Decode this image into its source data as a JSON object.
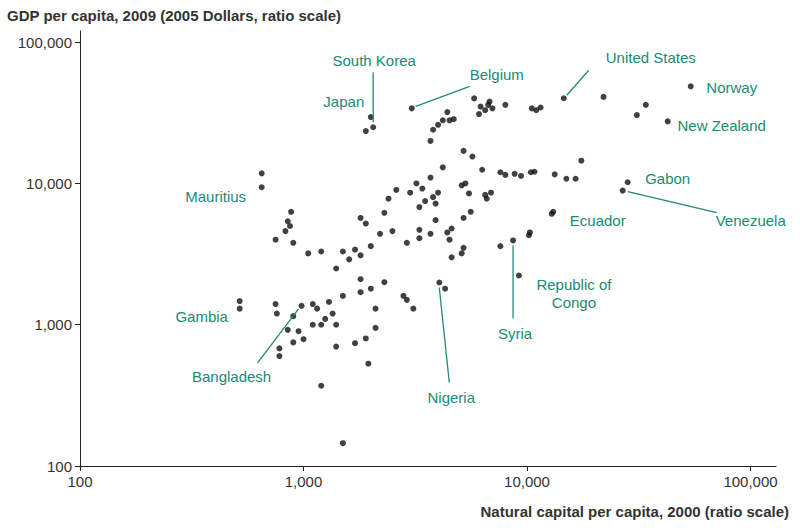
{
  "chart_data": {
    "type": "scatter",
    "ylabel": "GDP per capita, 2009 (2005 Dollars, ratio scale)",
    "xlabel": "Natural capital per capita, 2000 (ratio scale)",
    "color": "#111111",
    "log": true,
    "grid": false,
    "xlim": [
      100,
      130000
    ],
    "ylim": [
      100,
      120000
    ],
    "xticks": [
      100,
      {
        "value": 1000,
        "label": "1,000"
      },
      {
        "value": 10000,
        "label": "10,000"
      },
      {
        "value": 100000,
        "label": "100,000"
      }
    ],
    "yticks": [
      100,
      {
        "value": 1000,
        "label": "1,000"
      },
      {
        "value": 10000,
        "label": "10,000"
      },
      {
        "value": 100000,
        "label": "100,000"
      }
    ],
    "x": [
      2000,
      1900,
      2050,
      3050,
      4000,
      4200,
      4400,
      4500,
      4700,
      3800,
      3700,
      5800,
      6100,
      6500,
      6700,
      7000,
      6800,
      8000,
      6200,
      10500,
      11000,
      11500,
      14600,
      22000,
      31000,
      34000,
      42600,
      54000,
      5200,
      5700,
      4200,
      6300,
      7600,
      3700,
      3200,
      3400,
      3000,
      2600,
      2400,
      3800,
      4000,
      3500,
      3300,
      3900,
      5100,
      5300,
      5500,
      6500,
      6900,
      6600,
      8000,
      8800,
      9400,
      10400,
      10800,
      13300,
      15000,
      16500,
      17500,
      28200,
      26800,
      12900,
      13100,
      2300,
      1800,
      3300,
      5200,
      5600,
      3900,
      8660,
      10200,
      10300,
      7600,
      4400,
      4600,
      4500,
      4600,
      5100,
      5200,
      3700,
      3300,
      2900,
      2500,
      2200,
      1900,
      2000,
      1800,
      1600,
      1700,
      1500,
      1400,
      1200,
      900,
      750,
      830,
      850,
      880,
      870,
      1050,
      650,
      650,
      9200,
      4050,
      980,
      518,
      518,
      750,
      760,
      900,
      1100,
      1150,
      1300,
      1350,
      1250,
      1400,
      1500,
      1800,
      2000,
      2300,
      2800,
      2900,
      3100,
      4300,
      2100,
      1800,
      780,
      780,
      900,
      950,
      1000,
      1100,
      1200,
      1400,
      1700,
      1900,
      1950,
      2100,
      1200,
      1500,
      850
    ],
    "y": [
      29500,
      23500,
      25000,
      34000,
      26000,
      28000,
      32000,
      28000,
      28500,
      24000,
      20000,
      40000,
      31000,
      33000,
      36000,
      34000,
      38000,
      36000,
      35000,
      34000,
      33000,
      34500,
      40100,
      41000,
      30500,
      36000,
      27500,
      48700,
      17000,
      15500,
      13000,
      12500,
      12000,
      11000,
      10000,
      9200,
      8600,
      9000,
      7800,
      8000,
      8600,
      7500,
      6800,
      7200,
      9700,
      10000,
      8500,
      8300,
      8600,
      7800,
      11500,
      11700,
      11300,
      12000,
      12100,
      11600,
      10800,
      10800,
      14500,
      10200,
      8900,
      6100,
      6300,
      6200,
      5700,
      4700,
      5700,
      6300,
      5500,
      3950,
      4300,
      4500,
      3600,
      4500,
      4800,
      4000,
      3000,
      3200,
      3500,
      4400,
      4100,
      3800,
      4600,
      4400,
      5200,
      3600,
      3100,
      2900,
      3400,
      3300,
      2500,
      3300,
      3800,
      4000,
      4600,
      5400,
      6300,
      5000,
      3200,
      11800,
      9400,
      2230,
      1990,
      1360,
      1470,
      1300,
      1400,
      1200,
      1150,
      1400,
      1300,
      1450,
      1200,
      1100,
      1000,
      1600,
      1700,
      1800,
      2000,
      1600,
      1500,
      1300,
      1800,
      1300,
      2100,
      680,
      600,
      750,
      900,
      790,
      1000,
      1000,
      700,
      740,
      800,
      530,
      950,
      370,
      145,
      920
    ],
    "annotations": [
      {
        "text": "Japan",
        "x": 2000,
        "y": 29500
      },
      {
        "text": "South Korea",
        "x": 2050,
        "y": 25000
      },
      {
        "text": "Belgium",
        "x": 3050,
        "y": 34000
      },
      {
        "text": "United States",
        "x": 14600,
        "y": 40100
      },
      {
        "text": "Norway",
        "x": 54000,
        "y": 48700
      },
      {
        "text": "New Zealand",
        "x": 42600,
        "y": 27500
      },
      {
        "text": "Gabon",
        "x": 28200,
        "y": 10200
      },
      {
        "text": "Venezuela",
        "x": 26800,
        "y": 8900
      },
      {
        "text": "Ecuador",
        "x": 12900,
        "y": 6100
      },
      {
        "text": "Syria",
        "x": 8660,
        "y": 3950
      },
      {
        "text": "Republic of\nCongo",
        "x": 9200,
        "y": 2230
      },
      {
        "text": "Nigeria",
        "x": 4050,
        "y": 1990
      },
      {
        "text": "Bangladesh",
        "x": 980,
        "y": 1360
      },
      {
        "text": "Gambia",
        "x": 518,
        "y": 1470
      },
      {
        "text": "Mauritius",
        "x": 650,
        "y": 11800
      }
    ]
  }
}
